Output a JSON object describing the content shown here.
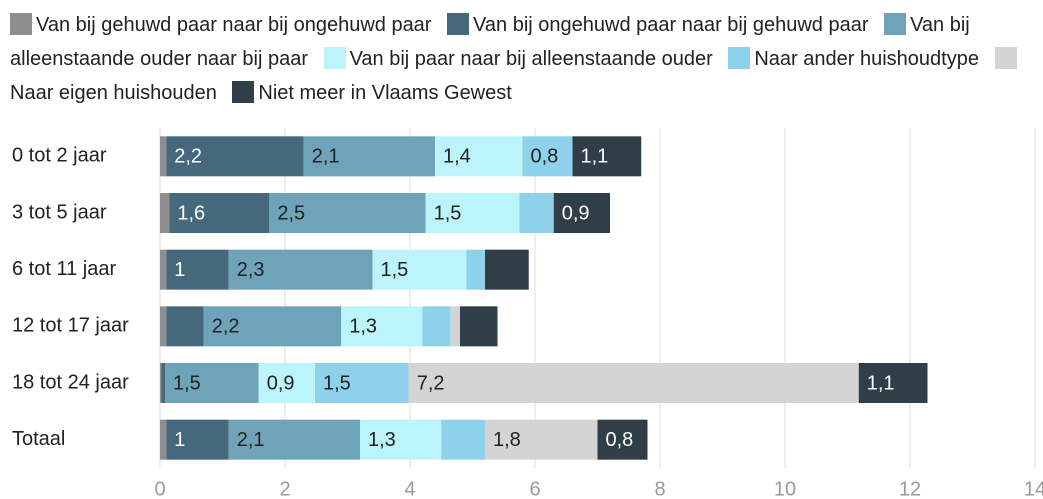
{
  "chart_data": {
    "type": "stacked-bar-horizontal",
    "categories": [
      "0 tot 2 jaar",
      "3 tot 5 jaar",
      "6 tot 11 jaar",
      "12 tot 17 jaar",
      "18 tot 24 jaar",
      "Totaal"
    ],
    "series": [
      {
        "name": "Van bij gehuwd paar naar bij ongehuwd paar",
        "color": "#8e8e8e",
        "values": [
          0.1,
          0.15,
          0.1,
          0.1,
          0.02,
          0.1
        ],
        "value_labels": [
          null,
          null,
          null,
          null,
          null,
          null
        ]
      },
      {
        "name": "Van bij ongehuwd paar naar bij gehuwd paar",
        "color": "#46687c",
        "values": [
          2.2,
          1.6,
          1,
          0.6,
          0.06,
          1
        ],
        "value_labels": [
          "2,2",
          "1,6",
          "1",
          null,
          null,
          "1"
        ]
      },
      {
        "name": "Van bij alleenstaande ouder naar bij paar",
        "color": "#6ea3ba",
        "values": [
          2.1,
          2.5,
          2.3,
          2.2,
          1.5,
          2.1
        ],
        "value_labels": [
          "2,1",
          "2,5",
          "2,3",
          "2,2",
          "1,5",
          "2,1"
        ]
      },
      {
        "name": "Van bij paar naar bij alleenstaande ouder",
        "color": "#bbf4fb",
        "values": [
          1.4,
          1.5,
          1.5,
          1.3,
          0.9,
          1.3
        ],
        "value_labels": [
          "1,4",
          "1,5",
          "1,5",
          "1,3",
          "0,9",
          "1,3"
        ]
      },
      {
        "name": "Naar ander huishoudtype",
        "color": "#8fd1ea",
        "values": [
          0.8,
          0.55,
          0.3,
          0.45,
          1.5,
          0.7
        ],
        "value_labels": [
          "0,8",
          null,
          null,
          null,
          "1,5",
          null
        ]
      },
      {
        "name": "Naar eigen huishouden",
        "color": "#d4d4d4",
        "values": [
          0,
          0,
          0,
          0.15,
          7.2,
          1.8
        ],
        "value_labels": [
          null,
          null,
          null,
          null,
          "7,2",
          "1,8"
        ]
      },
      {
        "name": "Niet meer in Vlaams Gewest",
        "color": "#2f3e47",
        "values": [
          1.1,
          0.9,
          0.7,
          0.6,
          1.1,
          0.8
        ],
        "value_labels": [
          "1,1",
          "0,9",
          null,
          null,
          "1,1",
          "0,8"
        ]
      }
    ],
    "xlim": [
      0,
      14
    ],
    "xticks": [
      0,
      2,
      4,
      6,
      8,
      10,
      12,
      14
    ],
    "grid": true
  }
}
